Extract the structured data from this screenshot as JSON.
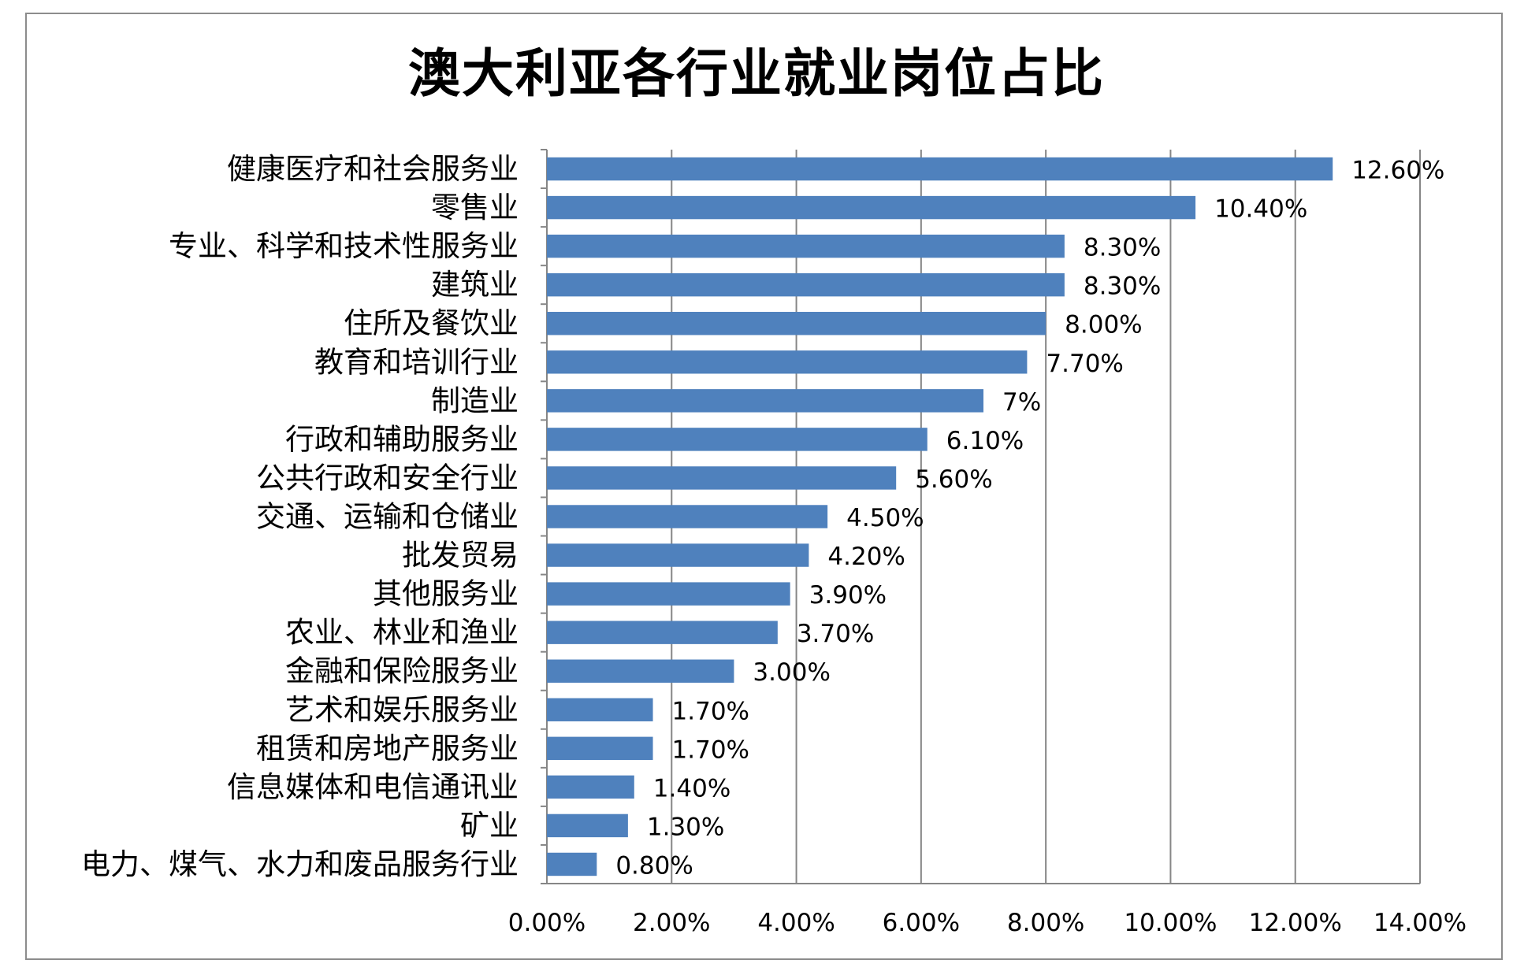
{
  "chart_data": {
    "type": "bar",
    "orientation": "horizontal",
    "title": "澳大利亚各行业就业岗位占比",
    "categories": [
      "健康医疗和社会服务业",
      "零售业",
      "专业、科学和技术性服务业",
      "建筑业",
      "住所及餐饮业",
      "教育和培训行业",
      "制造业",
      "行政和辅助服务业",
      "公共行政和安全行业",
      "交通、运输和仓储业",
      "批发贸易",
      "其他服务业",
      "农业、林业和渔业",
      "金融和保险服务业",
      "艺术和娱乐服务业",
      "租赁和房地产服务业",
      "信息媒体和电信通讯业",
      "矿业",
      "电力、煤气、水力和废品服务行业"
    ],
    "values": [
      12.6,
      10.4,
      8.3,
      8.3,
      8.0,
      7.7,
      7.0,
      6.1,
      5.6,
      4.5,
      4.2,
      3.9,
      3.7,
      3.0,
      1.7,
      1.7,
      1.4,
      1.3,
      0.8
    ],
    "data_labels": [
      "12.60%",
      "10.40%",
      "8.30%",
      "8.30%",
      "8.00%",
      "7.70%",
      "7%",
      "6.10%",
      "5.60%",
      "4.50%",
      "4.20%",
      "3.90%",
      "3.70%",
      "3.00%",
      "1.70%",
      "1.70%",
      "1.40%",
      "1.30%",
      "0.80%"
    ],
    "xlim": [
      0,
      14
    ],
    "x_ticks": [
      0,
      2,
      4,
      6,
      8,
      10,
      12,
      14
    ],
    "x_tick_labels": [
      "0.00%",
      "2.00%",
      "4.00%",
      "6.00%",
      "8.00%",
      "10.00%",
      "12.00%",
      "14.00%"
    ],
    "grid": true,
    "bar_color": "#4f81bd",
    "grid_color": "#868686",
    "xlabel": "",
    "ylabel": ""
  }
}
